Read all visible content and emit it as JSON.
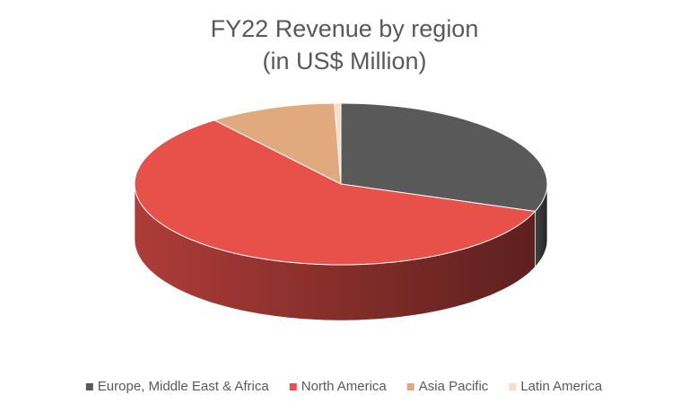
{
  "chart_data": {
    "type": "pie3d",
    "title": "FY22 Revenue by region",
    "subtitle": "(in US$ Million)",
    "categories": [
      "Europe, Middle East & Africa",
      "North America",
      "Asia Pacific",
      "Latin America"
    ],
    "values": [
      30.5,
      59,
      10,
      0.5
    ],
    "colors": [
      "#595959",
      "#e8504a",
      "#e0a97e",
      "#f6dccb"
    ],
    "legend": "bottom"
  }
}
